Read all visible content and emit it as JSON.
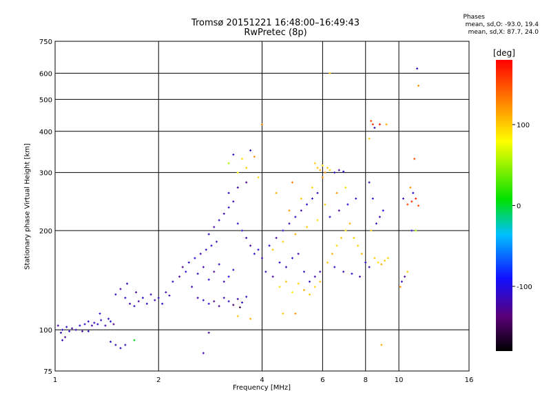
{
  "header": {
    "title_line1": "Tromsø 20151221 16:48:00–16:49:43",
    "title_line2": "RwPretec (8p)"
  },
  "stats": {
    "heading": "Phases",
    "line1": "mean, sd,O: -93.0, 19.4",
    "line2": "mean, sd,X:  87.7, 24.0"
  },
  "chart_data": {
    "type": "scatter",
    "xlabel": "Frequency [MHz]",
    "ylabel": "Stationary phase Virtual Height [km]",
    "x_scale": "log",
    "y_scale": "log",
    "xlim": [
      1,
      16
    ],
    "ylim": [
      75,
      750
    ],
    "x_ticks": [
      1,
      2,
      4,
      6,
      8,
      10,
      16
    ],
    "y_ticks": [
      75,
      100,
      200,
      300,
      400,
      500,
      600,
      750
    ],
    "x_gridlines": [
      2,
      4,
      6,
      8,
      10
    ],
    "y_gridlines": [
      100,
      200,
      300,
      400,
      500,
      600
    ],
    "grid": true,
    "colorbar": {
      "label": "[deg]",
      "range": [
        -180,
        180
      ],
      "ticks": [
        100,
        0,
        -100
      ],
      "colors": [
        "#000000",
        "#5a007a",
        "#1010ff",
        "#00c0ff",
        "#00e000",
        "#ffff00",
        "#ff8000",
        "#ff0000"
      ]
    },
    "series": [
      {
        "values_note": "phase in degrees",
        "points": [
          [
            1.02,
            103,
            -110
          ],
          [
            1.04,
            98,
            -105
          ],
          [
            1.05,
            100,
            -95
          ],
          [
            1.07,
            95,
            -120
          ],
          [
            1.08,
            102,
            -100
          ],
          [
            1.1,
            99,
            -90
          ],
          [
            1.12,
            101,
            -110
          ],
          [
            1.15,
            100,
            -100
          ],
          [
            1.18,
            103,
            -95
          ],
          [
            1.2,
            99,
            -115
          ],
          [
            1.22,
            104,
            -100
          ],
          [
            1.25,
            106,
            -90
          ],
          [
            1.28,
            103,
            -110
          ],
          [
            1.3,
            105,
            -105
          ],
          [
            1.33,
            104,
            -95
          ],
          [
            1.36,
            107,
            -100
          ],
          [
            1.4,
            103,
            -110
          ],
          [
            1.43,
            108,
            -100
          ],
          [
            1.45,
            106,
            -90
          ],
          [
            1.48,
            104,
            -120
          ],
          [
            1.35,
            112,
            -95
          ],
          [
            1.25,
            99,
            -105
          ],
          [
            1.05,
            93,
            -100
          ],
          [
            1.5,
            90,
            -110
          ],
          [
            1.55,
            88,
            -100
          ],
          [
            1.45,
            92,
            -95
          ],
          [
            1.5,
            128,
            -100
          ],
          [
            1.55,
            133,
            -110
          ],
          [
            1.6,
            125,
            -95
          ],
          [
            1.65,
            120,
            -105
          ],
          [
            1.7,
            118,
            -100
          ],
          [
            1.75,
            122,
            -110
          ],
          [
            1.8,
            125,
            -95
          ],
          [
            1.85,
            120,
            -100
          ],
          [
            1.9,
            128,
            -105
          ],
          [
            1.95,
            123,
            -110
          ],
          [
            2.0,
            125,
            -100
          ],
          [
            2.05,
            120,
            -95
          ],
          [
            2.1,
            130,
            -110
          ],
          [
            2.15,
            127,
            -100
          ],
          [
            1.62,
            138,
            -105
          ],
          [
            1.72,
            130,
            -115
          ],
          [
            2.2,
            140,
            -100
          ],
          [
            2.3,
            145,
            -110
          ],
          [
            2.4,
            150,
            -95
          ],
          [
            2.5,
            135,
            -105
          ],
          [
            2.6,
            148,
            -100
          ],
          [
            2.7,
            155,
            -110
          ],
          [
            2.8,
            142,
            -95
          ],
          [
            2.9,
            150,
            -120
          ],
          [
            3.0,
            158,
            -100
          ],
          [
            3.1,
            140,
            -110
          ],
          [
            3.2,
            145,
            -95
          ],
          [
            3.3,
            152,
            -105
          ],
          [
            2.45,
            160,
            -100
          ],
          [
            2.55,
            165,
            -90
          ],
          [
            2.65,
            170,
            -110
          ],
          [
            2.75,
            175,
            -100
          ],
          [
            2.85,
            180,
            -95
          ],
          [
            2.95,
            185,
            -105
          ],
          [
            2.35,
            155,
            -120
          ],
          [
            2.6,
            125,
            -110
          ],
          [
            2.7,
            123,
            -100
          ],
          [
            2.8,
            120,
            -95
          ],
          [
            2.9,
            122,
            -130
          ],
          [
            3.0,
            118,
            -120
          ],
          [
            3.1,
            125,
            -110
          ],
          [
            3.2,
            122,
            -100
          ],
          [
            3.3,
            119,
            -140
          ],
          [
            3.4,
            124,
            -110
          ],
          [
            3.5,
            121,
            -100
          ],
          [
            3.6,
            126,
            -95
          ],
          [
            3.45,
            117,
            -150
          ],
          [
            2.8,
            195,
            -100
          ],
          [
            2.9,
            205,
            -110
          ],
          [
            3.0,
            215,
            -95
          ],
          [
            3.1,
            225,
            -105
          ],
          [
            3.2,
            235,
            -100
          ],
          [
            3.3,
            245,
            -110
          ],
          [
            3.4,
            210,
            -95
          ],
          [
            3.5,
            200,
            -100
          ],
          [
            3.6,
            190,
            -105
          ],
          [
            3.7,
            180,
            -110
          ],
          [
            3.8,
            170,
            -100
          ],
          [
            3.9,
            175,
            -95
          ],
          [
            4.0,
            165,
            -105
          ],
          [
            3.2,
            260,
            -100
          ],
          [
            3.4,
            270,
            -110
          ],
          [
            3.6,
            280,
            -120
          ],
          [
            3.2,
            320,
            60
          ],
          [
            3.4,
            300,
            80
          ],
          [
            3.3,
            340,
            -100
          ],
          [
            3.5,
            330,
            90
          ],
          [
            3.6,
            310,
            100
          ],
          [
            3.7,
            350,
            -100
          ],
          [
            3.8,
            335,
            120
          ],
          [
            3.9,
            290,
            95
          ],
          [
            4.1,
            150,
            -100
          ],
          [
            4.3,
            145,
            -110
          ],
          [
            4.5,
            160,
            -95
          ],
          [
            4.7,
            155,
            -105
          ],
          [
            4.9,
            165,
            -100
          ],
          [
            5.1,
            170,
            -110
          ],
          [
            5.3,
            150,
            -95
          ],
          [
            5.5,
            140,
            -100
          ],
          [
            5.7,
            145,
            -105
          ],
          [
            5.9,
            150,
            -110
          ],
          [
            4.2,
            180,
            -100
          ],
          [
            4.4,
            190,
            -110
          ],
          [
            4.6,
            200,
            -95
          ],
          [
            4.8,
            210,
            -105
          ],
          [
            5.0,
            220,
            -100
          ],
          [
            5.2,
            230,
            -110
          ],
          [
            5.4,
            240,
            -95
          ],
          [
            5.6,
            250,
            -100
          ],
          [
            5.8,
            260,
            -105
          ],
          [
            4.5,
            135,
            90
          ],
          [
            4.7,
            140,
            100
          ],
          [
            4.9,
            130,
            85
          ],
          [
            5.1,
            138,
            95
          ],
          [
            5.3,
            132,
            110
          ],
          [
            5.5,
            128,
            100
          ],
          [
            5.7,
            135,
            90
          ],
          [
            5.9,
            140,
            105
          ],
          [
            4.3,
            175,
            100
          ],
          [
            4.6,
            185,
            95
          ],
          [
            5.0,
            195,
            110
          ],
          [
            5.4,
            205,
            100
          ],
          [
            5.8,
            215,
            90
          ],
          [
            4.8,
            230,
            120
          ],
          [
            5.2,
            250,
            100
          ],
          [
            5.6,
            270,
            95
          ],
          [
            4.4,
            260,
            110
          ],
          [
            4.9,
            280,
            130
          ],
          [
            5.8,
            310,
            100
          ],
          [
            5.9,
            305,
            110
          ],
          [
            6.0,
            315,
            90
          ],
          [
            6.1,
            300,
            120
          ],
          [
            6.2,
            310,
            100
          ],
          [
            6.3,
            305,
            95
          ],
          [
            6.5,
            300,
            -100
          ],
          [
            6.7,
            305,
            -110
          ],
          [
            6.9,
            302,
            -95
          ],
          [
            6.0,
            290,
            130
          ],
          [
            5.7,
            320,
            100
          ],
          [
            6.2,
            160,
            100
          ],
          [
            6.4,
            170,
            110
          ],
          [
            6.6,
            180,
            95
          ],
          [
            6.8,
            190,
            100
          ],
          [
            7.0,
            200,
            90
          ],
          [
            7.2,
            210,
            110
          ],
          [
            7.4,
            190,
            100
          ],
          [
            7.6,
            180,
            95
          ],
          [
            7.8,
            170,
            105
          ],
          [
            6.5,
            155,
            -100
          ],
          [
            6.9,
            150,
            -110
          ],
          [
            7.3,
            148,
            -95
          ],
          [
            7.7,
            145,
            -105
          ],
          [
            6.3,
            220,
            -100
          ],
          [
            6.7,
            230,
            -110
          ],
          [
            7.1,
            240,
            -95
          ],
          [
            7.5,
            250,
            -100
          ],
          [
            6.1,
            240,
            100
          ],
          [
            6.6,
            260,
            120
          ],
          [
            7.0,
            270,
            90
          ],
          [
            8.0,
            160,
            -100
          ],
          [
            8.2,
            155,
            -110
          ],
          [
            8.5,
            165,
            100
          ],
          [
            8.7,
            160,
            90
          ],
          [
            8.9,
            158,
            110
          ],
          [
            9.1,
            162,
            100
          ],
          [
            9.3,
            165,
            95
          ],
          [
            8.3,
            200,
            100
          ],
          [
            8.6,
            210,
            -100
          ],
          [
            8.8,
            220,
            -110
          ],
          [
            9.0,
            230,
            -95
          ],
          [
            8.4,
            250,
            -100
          ],
          [
            8.2,
            280,
            -110
          ],
          [
            8.3,
            430,
            150
          ],
          [
            8.4,
            420,
            160
          ],
          [
            8.5,
            410,
            -100
          ],
          [
            8.2,
            380,
            100
          ],
          [
            8.8,
            420,
            170
          ],
          [
            9.2,
            420,
            110
          ],
          [
            10.2,
            140,
            -100
          ],
          [
            10.4,
            145,
            -110
          ],
          [
            10.6,
            150,
            100
          ],
          [
            10.1,
            135,
            120
          ],
          [
            10.3,
            250,
            -100
          ],
          [
            10.6,
            240,
            150
          ],
          [
            10.9,
            245,
            160
          ],
          [
            11.2,
            250,
            170
          ],
          [
            11.4,
            238,
            150
          ],
          [
            11.0,
            260,
            -100
          ],
          [
            10.8,
            270,
            120
          ],
          [
            11.3,
            620,
            -100
          ],
          [
            11.4,
            550,
            120
          ],
          [
            11.1,
            330,
            150
          ],
          [
            10.9,
            200,
            -100
          ],
          [
            11.2,
            200,
            60
          ],
          [
            6.3,
            600,
            100
          ],
          [
            4.0,
            420,
            130
          ],
          [
            2.8,
            98,
            -120
          ],
          [
            2.7,
            85,
            -110
          ],
          [
            1.6,
            90,
            -100
          ],
          [
            1.7,
            93,
            20
          ],
          [
            8.9,
            90,
            110
          ],
          [
            3.4,
            110,
            100
          ],
          [
            3.7,
            108,
            110
          ],
          [
            4.6,
            112,
            100
          ],
          [
            5.0,
            112,
            120
          ]
        ]
      }
    ]
  }
}
